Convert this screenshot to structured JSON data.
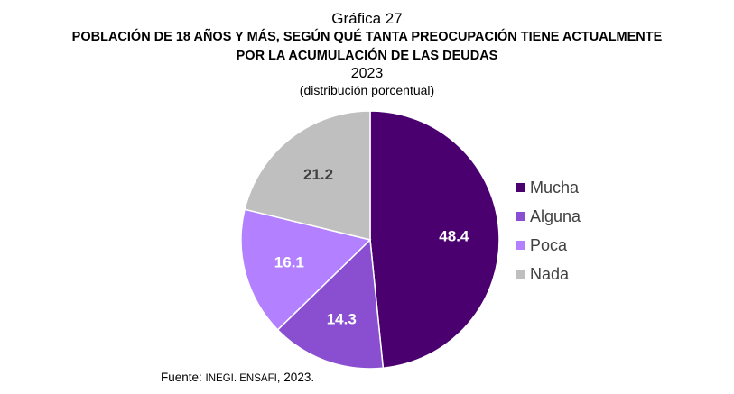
{
  "chart_data": {
    "type": "pie",
    "label_number": "Gráfica 27",
    "title": "POBLACIÓN DE 18 AÑOS Y MÁS, SEGÚN QUÉ TANTA PREOCUPACIÓN TIENE ACTUALMENTE POR LA ACUMULACIÓN DE LAS DEUDAS",
    "title_lines": [
      "POBLACIÓN DE 18 AÑOS Y MÁS, SEGÚN QUÉ TANTA PREOCUPACIÓN TIENE ACTUALMENTE",
      "POR LA ACUMULACIÓN DE LAS DEUDAS"
    ],
    "year": "2023",
    "subtitle": "(distribución porcentual)",
    "categories": [
      "Mucha",
      "Alguna",
      "Poca",
      "Nada"
    ],
    "values": [
      48.4,
      14.3,
      16.1,
      21.2
    ],
    "data_labels": [
      "48.4",
      "14.3",
      "16.1",
      "21.2"
    ],
    "colors": [
      "#4b0070",
      "#8a4ed0",
      "#b380ff",
      "#bfbfbf"
    ],
    "label_colors": [
      "#ffffff",
      "#ffffff",
      "#ffffff",
      "#404040"
    ],
    "legend_position": "right",
    "start_angle": "12 o'clock, clockwise"
  },
  "source": {
    "prefix": "Fuente:",
    "text": "INEGI. ENSAFI",
    "year": ", 2023."
  }
}
